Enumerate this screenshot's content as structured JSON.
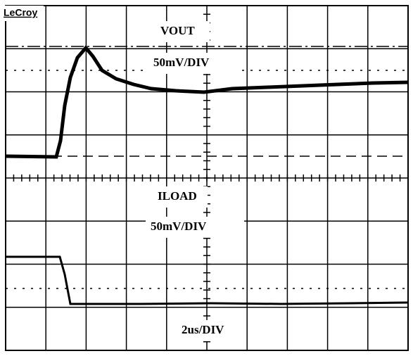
{
  "brand": "LeCroy",
  "upper_trace": {
    "name": "VOUT",
    "scale": "50mV/DIV"
  },
  "lower_trace": {
    "name": "ILOAD",
    "scale": "50mV/DIV"
  },
  "timebase": "2us/DIV"
}
